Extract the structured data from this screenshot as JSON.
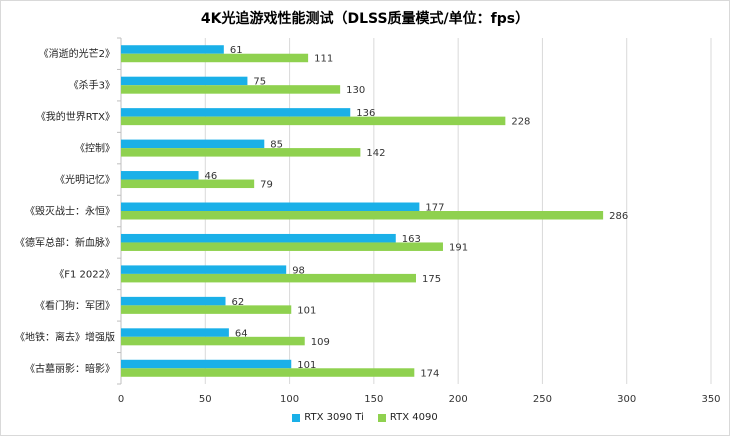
{
  "chart_data": {
    "type": "bar",
    "orientation": "horizontal",
    "title": "4K光追游戏性能测试（DLSS质量模式/单位：fps）",
    "categories": [
      "《消逝的光芒2》",
      "《杀手3》",
      "《我的世界RTX》",
      "《控制》",
      "《光明记忆》",
      "《毁灭战士：永恒》",
      "《德军总部：新血脉》",
      "《F1 2022》",
      "《看门狗：军团》",
      "《地铁：离去》增强版",
      "《古墓丽影：暗影》"
    ],
    "series": [
      {
        "name": "RTX 3090 Ti",
        "color": "#1ab0e8",
        "values": [
          61,
          75,
          136,
          85,
          46,
          177,
          163,
          98,
          62,
          64,
          101
        ]
      },
      {
        "name": "RTX 4090",
        "color": "#8fd14f",
        "values": [
          111,
          130,
          228,
          142,
          79,
          286,
          191,
          175,
          101,
          109,
          174
        ]
      }
    ],
    "xlim": [
      0,
      350
    ],
    "xticks": [
      0,
      50,
      100,
      150,
      200,
      250,
      300,
      350
    ],
    "grid": "vertical",
    "legend_position": "bottom"
  }
}
